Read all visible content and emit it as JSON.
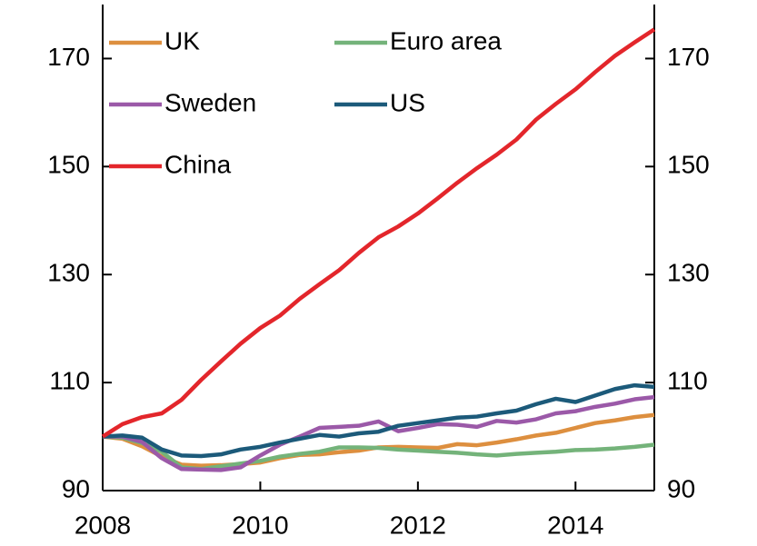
{
  "chart_data": {
    "type": "line",
    "x": [
      2008,
      2008.25,
      2008.5,
      2008.75,
      2009,
      2009.25,
      2009.5,
      2009.75,
      2010,
      2010.25,
      2010.5,
      2010.75,
      2011,
      2011.25,
      2011.5,
      2011.75,
      2012,
      2012.25,
      2012.5,
      2012.75,
      2013,
      2013.25,
      2013.5,
      2013.75,
      2014,
      2014.25,
      2014.5,
      2014.75,
      2015
    ],
    "series": [
      {
        "name": "UK",
        "color": "#dd8f3f",
        "values": [
          100,
          99.6,
          98.2,
          96.3,
          94.8,
          94.6,
          94.7,
          94.9,
          95.2,
          96.0,
          96.6,
          96.7,
          97.1,
          97.4,
          98.0,
          98.1,
          98.0,
          97.9,
          98.6,
          98.4,
          98.9,
          99.5,
          100.2,
          100.7,
          101.6,
          102.5,
          103.0,
          103.6,
          104.0
        ]
      },
      {
        "name": "Euro area",
        "color": "#74b37a",
        "values": [
          100,
          99.8,
          98.8,
          97.2,
          94.3,
          94.0,
          94.5,
          95.0,
          95.5,
          96.3,
          96.8,
          97.2,
          98.0,
          98.0,
          97.9,
          97.6,
          97.4,
          97.2,
          97.0,
          96.7,
          96.5,
          96.8,
          97.0,
          97.2,
          97.5,
          97.6,
          97.8,
          98.1,
          98.5
        ]
      },
      {
        "name": "Sweden",
        "color": "#9b59a8",
        "values": [
          100,
          100.0,
          99.0,
          96.0,
          94.0,
          93.9,
          93.8,
          94.3,
          96.5,
          98.5,
          100.0,
          101.6,
          101.8,
          102.0,
          102.8,
          101.0,
          101.6,
          102.3,
          102.2,
          101.8,
          102.9,
          102.6,
          103.2,
          104.3,
          104.7,
          105.5,
          106.1,
          106.9,
          107.3
        ]
      },
      {
        "name": "US",
        "color": "#1c5a7a",
        "values": [
          100,
          100.2,
          99.8,
          97.6,
          96.5,
          96.4,
          96.7,
          97.6,
          98.1,
          98.9,
          99.6,
          100.3,
          100.0,
          100.6,
          100.9,
          102.0,
          102.5,
          103.0,
          103.5,
          103.7,
          104.3,
          104.8,
          106.0,
          107.0,
          106.4,
          107.6,
          108.8,
          109.5,
          109.2
        ]
      },
      {
        "name": "China",
        "color": "#e3262b",
        "values": [
          100,
          102.3,
          103.6,
          104.3,
          106.8,
          110.5,
          113.9,
          117.2,
          120.1,
          122.4,
          125.5,
          128.2,
          130.8,
          134.0,
          136.9,
          138.9,
          141.3,
          144.1,
          147.0,
          149.7,
          152.2,
          155.0,
          158.7,
          161.6,
          164.3,
          167.5,
          170.5,
          173.0,
          175.4
        ]
      }
    ],
    "xlim": [
      2008,
      2015
    ],
    "xticks": [
      2008,
      2010,
      2012,
      2014
    ],
    "ylim": [
      90,
      180
    ],
    "yticks": [
      90,
      110,
      130,
      150,
      170
    ],
    "y2lim": [
      90,
      180
    ],
    "y2ticks": [
      90,
      110,
      130,
      150,
      170
    ],
    "legend": "upper left"
  }
}
